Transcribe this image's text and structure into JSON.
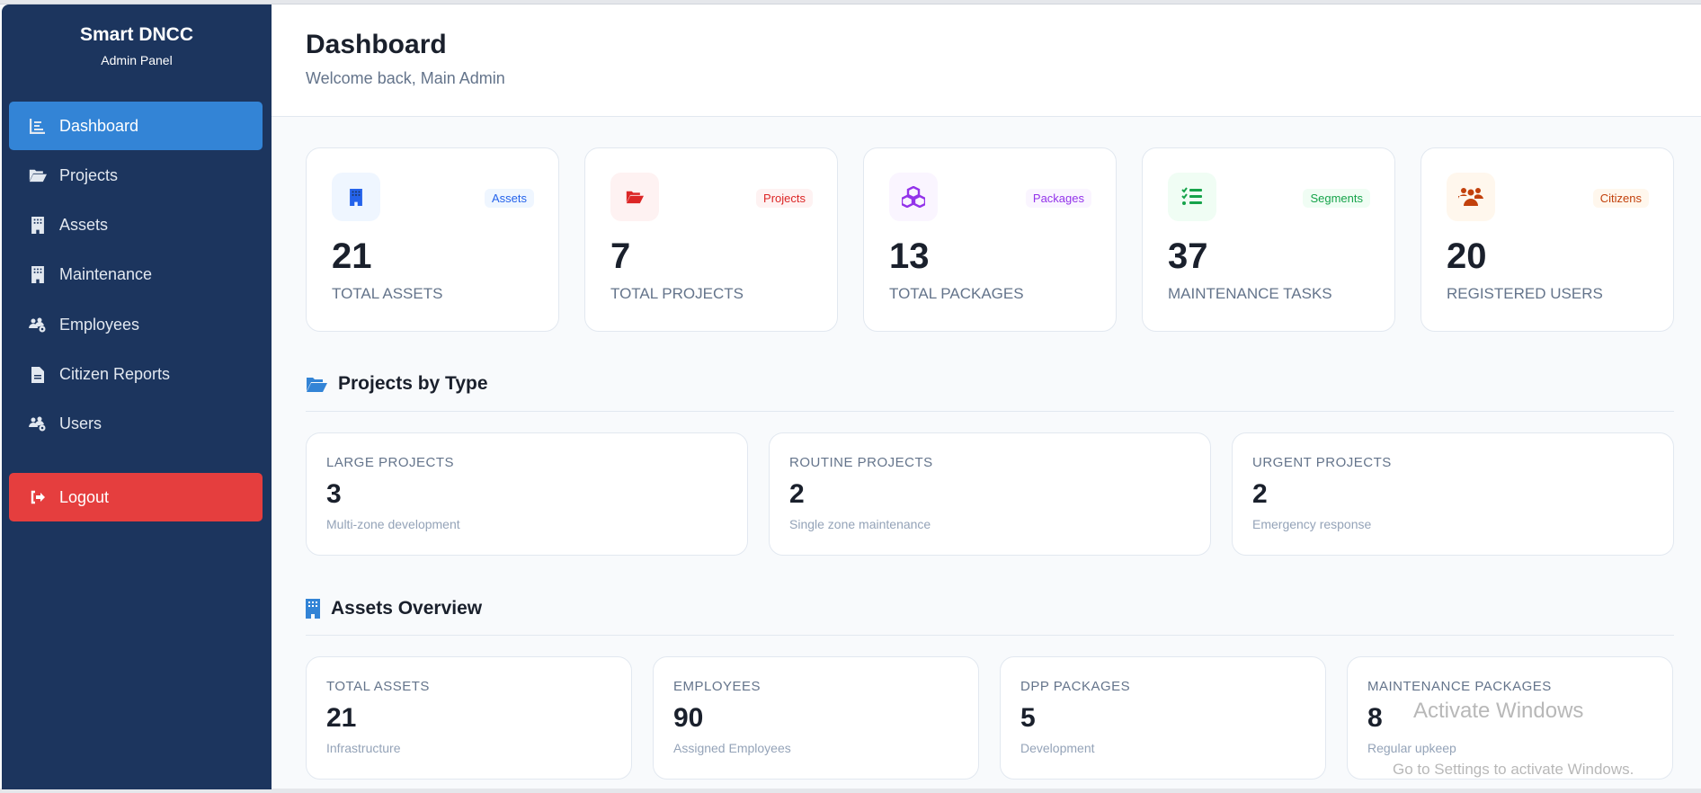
{
  "sidebar": {
    "brand": "Smart DNCC",
    "subtitle": "Admin Panel",
    "items": [
      {
        "label": "Dashboard",
        "icon": "chart-icon"
      },
      {
        "label": "Projects",
        "icon": "folder-icon"
      },
      {
        "label": "Assets",
        "icon": "building-icon"
      },
      {
        "label": "Maintenance",
        "icon": "building-icon"
      },
      {
        "label": "Employees",
        "icon": "users-gear-icon"
      },
      {
        "label": "Citizen Reports",
        "icon": "file-icon"
      },
      {
        "label": "Users",
        "icon": "users-gear-icon"
      }
    ],
    "logout": "Logout"
  },
  "header": {
    "title": "Dashboard",
    "subtitle": "Welcome back, Main Admin"
  },
  "stats": [
    {
      "badge": "Assets",
      "value": "21",
      "label": "TOTAL ASSETS",
      "color": "#2563eb",
      "bg": "#eff6ff",
      "icon": "building-icon"
    },
    {
      "badge": "Projects",
      "value": "7",
      "label": "TOTAL PROJECTS",
      "color": "#dc2626",
      "bg": "#fef2f2",
      "icon": "folder-open-icon"
    },
    {
      "badge": "Packages",
      "value": "13",
      "label": "TOTAL PACKAGES",
      "color": "#9333ea",
      "bg": "#faf5ff",
      "icon": "cubes-icon"
    },
    {
      "badge": "Segments",
      "value": "37",
      "label": "MAINTENANCE TASKS",
      "color": "#16a34a",
      "bg": "#f0fdf4",
      "icon": "list-check-icon"
    },
    {
      "badge": "Citizens",
      "value": "20",
      "label": "REGISTERED USERS",
      "color": "#c2410c",
      "bg": "#fff7ed",
      "icon": "people-icon"
    }
  ],
  "projects_section": {
    "title": "Projects by Type",
    "cards": [
      {
        "label": "LARGE PROJECTS",
        "value": "3",
        "desc": "Multi-zone development"
      },
      {
        "label": "ROUTINE PROJECTS",
        "value": "2",
        "desc": "Single zone maintenance"
      },
      {
        "label": "URGENT PROJECTS",
        "value": "2",
        "desc": "Emergency response"
      }
    ]
  },
  "assets_section": {
    "title": "Assets Overview",
    "cards": [
      {
        "label": "TOTAL ASSETS",
        "value": "21",
        "desc": "Infrastructure"
      },
      {
        "label": "EMPLOYEES",
        "value": "90",
        "desc": "Assigned Employees"
      },
      {
        "label": "DPP PACKAGES",
        "value": "5",
        "desc": "Development"
      },
      {
        "label": "MAINTENANCE PACKAGES",
        "value": "8",
        "desc": "Regular upkeep"
      }
    ]
  },
  "watermark": {
    "line1": "Activate Windows",
    "line2": "Go to Settings to activate Windows."
  },
  "colors": {
    "sidebar": "#1c355e",
    "active": "#3384d6",
    "logout": "#e53e3e",
    "section_icon": "#3384d6"
  }
}
